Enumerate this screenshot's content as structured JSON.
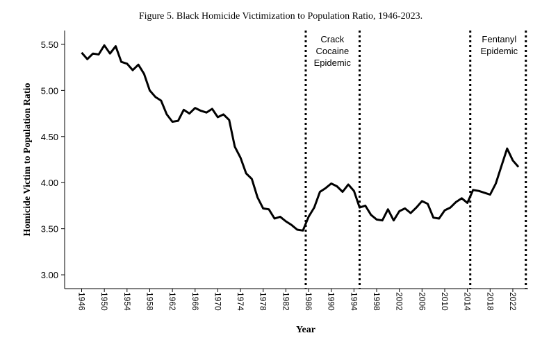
{
  "chart_data": {
    "type": "line",
    "title": "Figure 5. Black Homicide Victimization to Population Ratio, 1946-2023.",
    "xlabel": "Year",
    "ylabel": "Homicide Victim to Population Ratio",
    "xlim": [
      1943,
      2024.7
    ],
    "ylim": [
      2.85,
      5.65
    ],
    "y_ticks": [
      "3.00",
      "3.50",
      "4.00",
      "4.50",
      "5.00",
      "5.50"
    ],
    "x_ticks": [
      "1946",
      "1950",
      "1954",
      "1958",
      "1962",
      "1966",
      "1970",
      "1974",
      "1978",
      "1982",
      "1986",
      "1990",
      "1994",
      "1998",
      "2002",
      "2006",
      "2010",
      "2014",
      "2018",
      "2022"
    ],
    "x": [
      1946,
      1947,
      1948,
      1949,
      1950,
      1951,
      1952,
      1953,
      1954,
      1955,
      1956,
      1957,
      1958,
      1959,
      1960,
      1961,
      1962,
      1963,
      1964,
      1965,
      1966,
      1967,
      1968,
      1969,
      1970,
      1971,
      1972,
      1973,
      1974,
      1975,
      1976,
      1977,
      1978,
      1979,
      1980,
      1981,
      1982,
      1983,
      1984,
      1985,
      1986,
      1987,
      1988,
      1989,
      1990,
      1991,
      1992,
      1993,
      1994,
      1995,
      1996,
      1997,
      1998,
      1999,
      2000,
      2001,
      2002,
      2003,
      2004,
      2005,
      2006,
      2007,
      2008,
      2009,
      2010,
      2011,
      2012,
      2013,
      2014,
      2015,
      2016,
      2017,
      2018,
      2019,
      2020,
      2021,
      2022,
      2023
    ],
    "values": [
      5.41,
      5.34,
      5.4,
      5.39,
      5.49,
      5.4,
      5.48,
      5.31,
      5.29,
      5.22,
      5.28,
      5.18,
      5.0,
      4.93,
      4.89,
      4.74,
      4.66,
      4.67,
      4.79,
      4.75,
      4.81,
      4.78,
      4.76,
      4.8,
      4.71,
      4.74,
      4.68,
      4.39,
      4.27,
      4.1,
      4.04,
      3.84,
      3.72,
      3.71,
      3.61,
      3.63,
      3.58,
      3.54,
      3.49,
      3.48,
      3.63,
      3.73,
      3.9,
      3.94,
      3.99,
      3.96,
      3.9,
      3.98,
      3.91,
      3.73,
      3.75,
      3.65,
      3.6,
      3.59,
      3.71,
      3.59,
      3.69,
      3.72,
      3.67,
      3.73,
      3.8,
      3.77,
      3.62,
      3.61,
      3.7,
      3.73,
      3.79,
      3.83,
      3.78,
      3.92,
      3.91,
      3.89,
      3.87,
      3.99,
      4.18,
      4.37,
      4.24,
      4.17
    ],
    "vlines": [
      1985.5,
      1995.0,
      2014.5,
      2024.3
    ],
    "annotations": [
      {
        "x": 1990.2,
        "lines": [
          "Crack",
          "Cocaine",
          "Epidemic"
        ]
      },
      {
        "x": 2019.6,
        "lines": [
          "Fentanyl",
          "Epidemic"
        ]
      }
    ],
    "grid": false,
    "line_color": "#000000"
  }
}
